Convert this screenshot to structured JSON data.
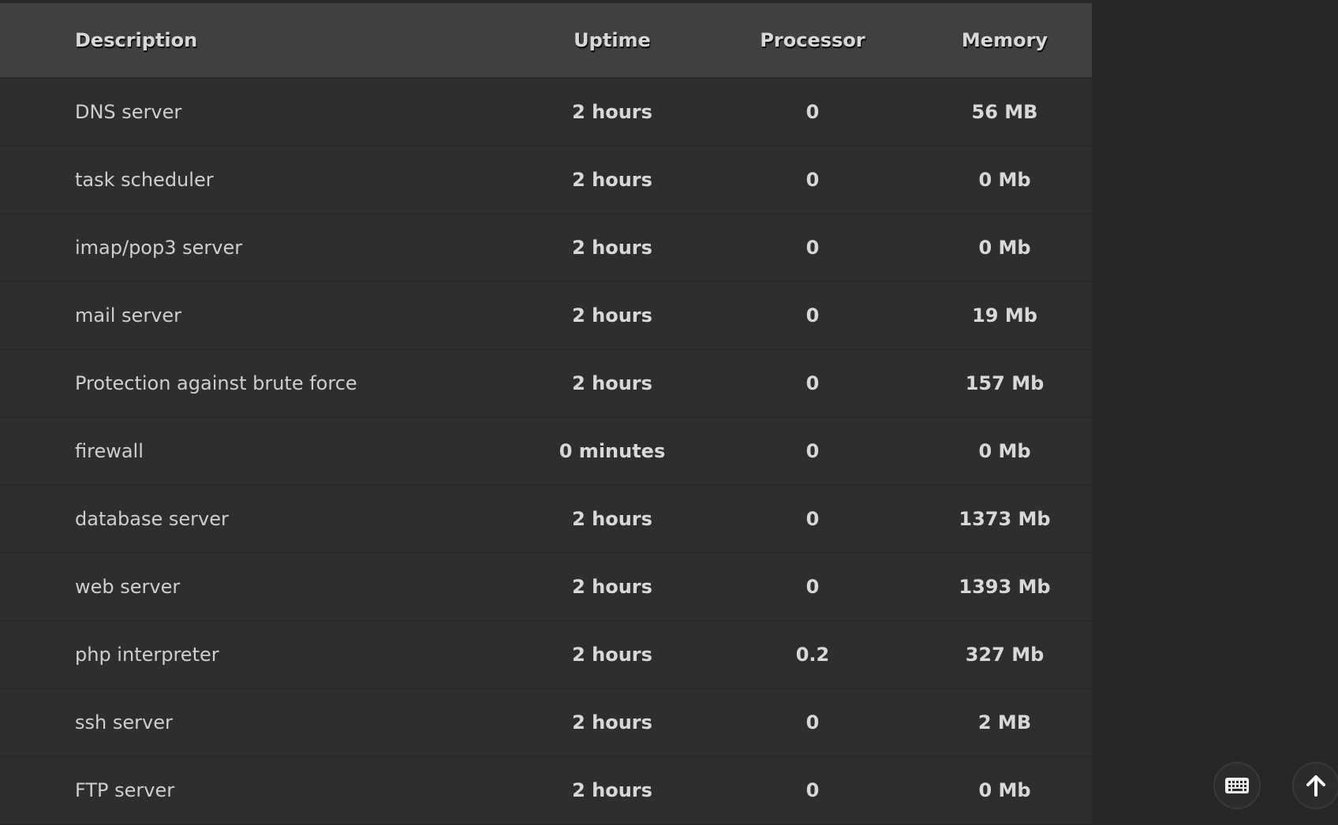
{
  "table": {
    "headers": [
      "Description",
      "Uptime",
      "Processor",
      "Memory"
    ],
    "rows": [
      [
        "DNS server",
        "2 hours",
        "0",
        "56 MB"
      ],
      [
        "task scheduler",
        "2 hours",
        "0",
        "0 Mb"
      ],
      [
        "imap/pop3 server",
        "2 hours",
        "0",
        "0 Mb"
      ],
      [
        "mail server",
        "2 hours",
        "0",
        "19 Mb"
      ],
      [
        "Protection against brute force",
        "2 hours",
        "0",
        "157 Mb"
      ],
      [
        "firewall",
        "0 minutes",
        "0",
        "0 Mb"
      ],
      [
        "database server",
        "2 hours",
        "0",
        "1373 Mb"
      ],
      [
        "web server",
        "2 hours",
        "0",
        "1393 Mb"
      ],
      [
        "php interpreter",
        "2 hours",
        "0.2",
        "327 Mb"
      ],
      [
        "ssh server",
        "2 hours",
        "0",
        "2 MB"
      ],
      [
        "FTP server",
        "2 hours",
        "0",
        "0 Mb"
      ]
    ]
  },
  "buttons": {
    "keyboard_icon": "keyboard-icon",
    "scroll_top_icon": "arrow-up-icon"
  }
}
